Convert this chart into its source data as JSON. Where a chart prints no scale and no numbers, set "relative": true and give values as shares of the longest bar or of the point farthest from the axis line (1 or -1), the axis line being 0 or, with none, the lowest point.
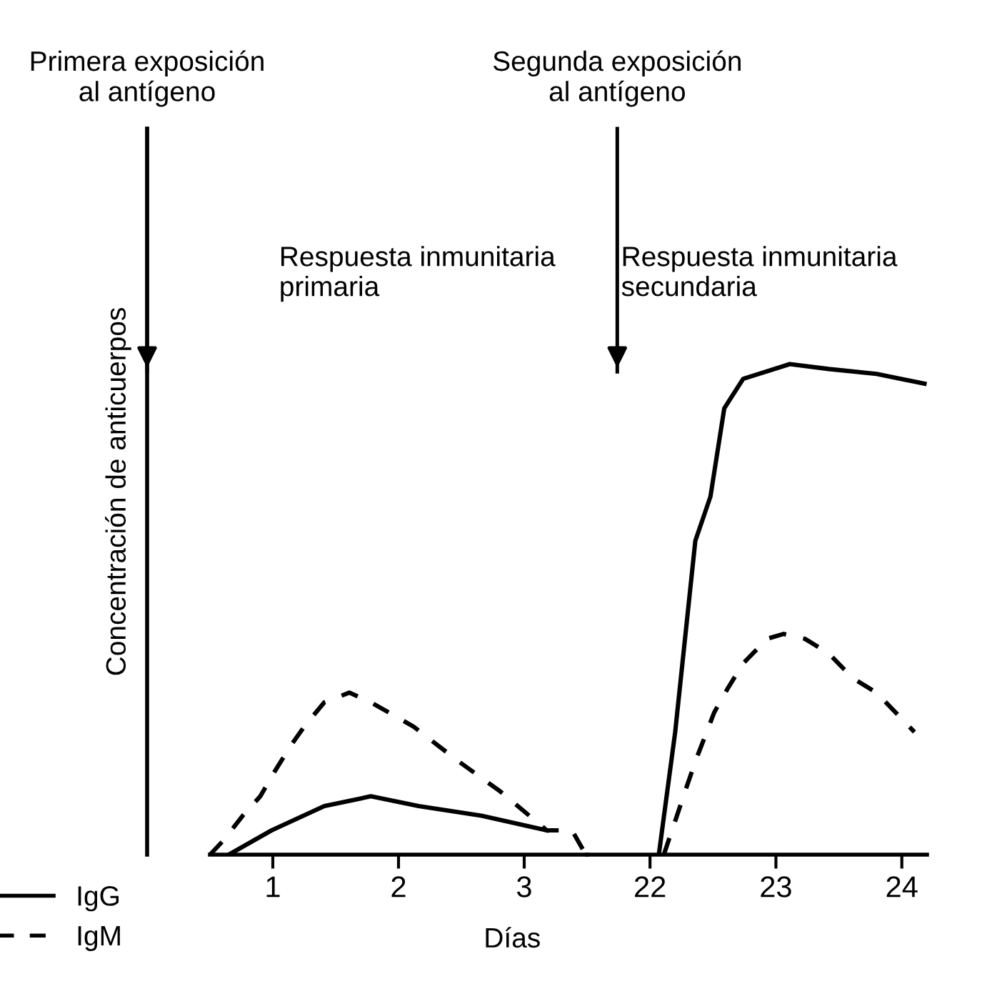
{
  "chart_data": [
    {
      "type": "line",
      "relative": true,
      "ylabel": "Concentración de anticuerpos",
      "xlim": [
        0,
        3.5
      ],
      "xticks": [
        1,
        2,
        3
      ],
      "tick_labels": "x",
      "legend": "bottom left",
      "series": [
        {
          "name": "IgG",
          "color": "#000000",
          "line_style": "solid",
          "x": [
            0.65,
            0.99,
            1.41,
            1.78,
            2.16,
            2.66,
            3.18
          ],
          "values": [
            0,
            0.15,
            0.3,
            0.36,
            0.3,
            0.24,
            0.15
          ]
        },
        {
          "name": "IgM",
          "color": "#000000",
          "line_style": "dashed",
          "x": [
            0.5,
            0.61,
            0.76,
            0.9,
            1.02,
            1.14,
            1.25,
            1.41,
            1.61,
            1.78,
            2.12,
            2.47,
            2.81,
            3.18,
            3.38,
            3.49
          ],
          "values": [
            0,
            0.09,
            0.24,
            0.36,
            0.52,
            0.67,
            0.79,
            0.94,
            1.0,
            0.94,
            0.79,
            0.58,
            0.39,
            0.15,
            0.15,
            0
          ]
        }
      ],
      "ref_lines": [
        {
          "axis": "x",
          "value": 0,
          "label": "Primera exposición\nal antígeno"
        }
      ],
      "annotations": [
        "Respuesta inmunitaria\nprimaria"
      ]
    },
    {
      "type": "line",
      "relative": true,
      "xlabel": "Días",
      "xlim": [
        21.5,
        24.2
      ],
      "xticks": [
        22,
        23,
        24
      ],
      "tick_labels": "x",
      "series": [
        {
          "color": "#000000",
          "line_style": "solid",
          "x": [
            22.07,
            22.2,
            22.36,
            22.48,
            22.59,
            22.74,
            23.11,
            23.42,
            23.8,
            24.18
          ],
          "values": [
            0,
            0.25,
            0.64,
            0.73,
            0.91,
            0.97,
            1.0,
            0.99,
            0.98,
            0.96
          ]
        },
        {
          "color": "#000000",
          "line_style": "dashed",
          "x": [
            22.11,
            22.28,
            22.36,
            22.51,
            22.62,
            22.74,
            22.93,
            23.06,
            23.23,
            23.42,
            23.61,
            23.8,
            24.1
          ],
          "values": [
            0,
            0.13,
            0.19,
            0.29,
            0.34,
            0.39,
            0.44,
            0.45,
            0.44,
            0.41,
            0.36,
            0.33,
            0.25
          ]
        }
      ],
      "ref_lines": [
        {
          "axis": "x",
          "value": 21.74,
          "label": "Segunda exposición\nal antígeno"
        }
      ],
      "annotations": [
        "Respuesta inmunitaria\nsecundaria"
      ]
    }
  ]
}
